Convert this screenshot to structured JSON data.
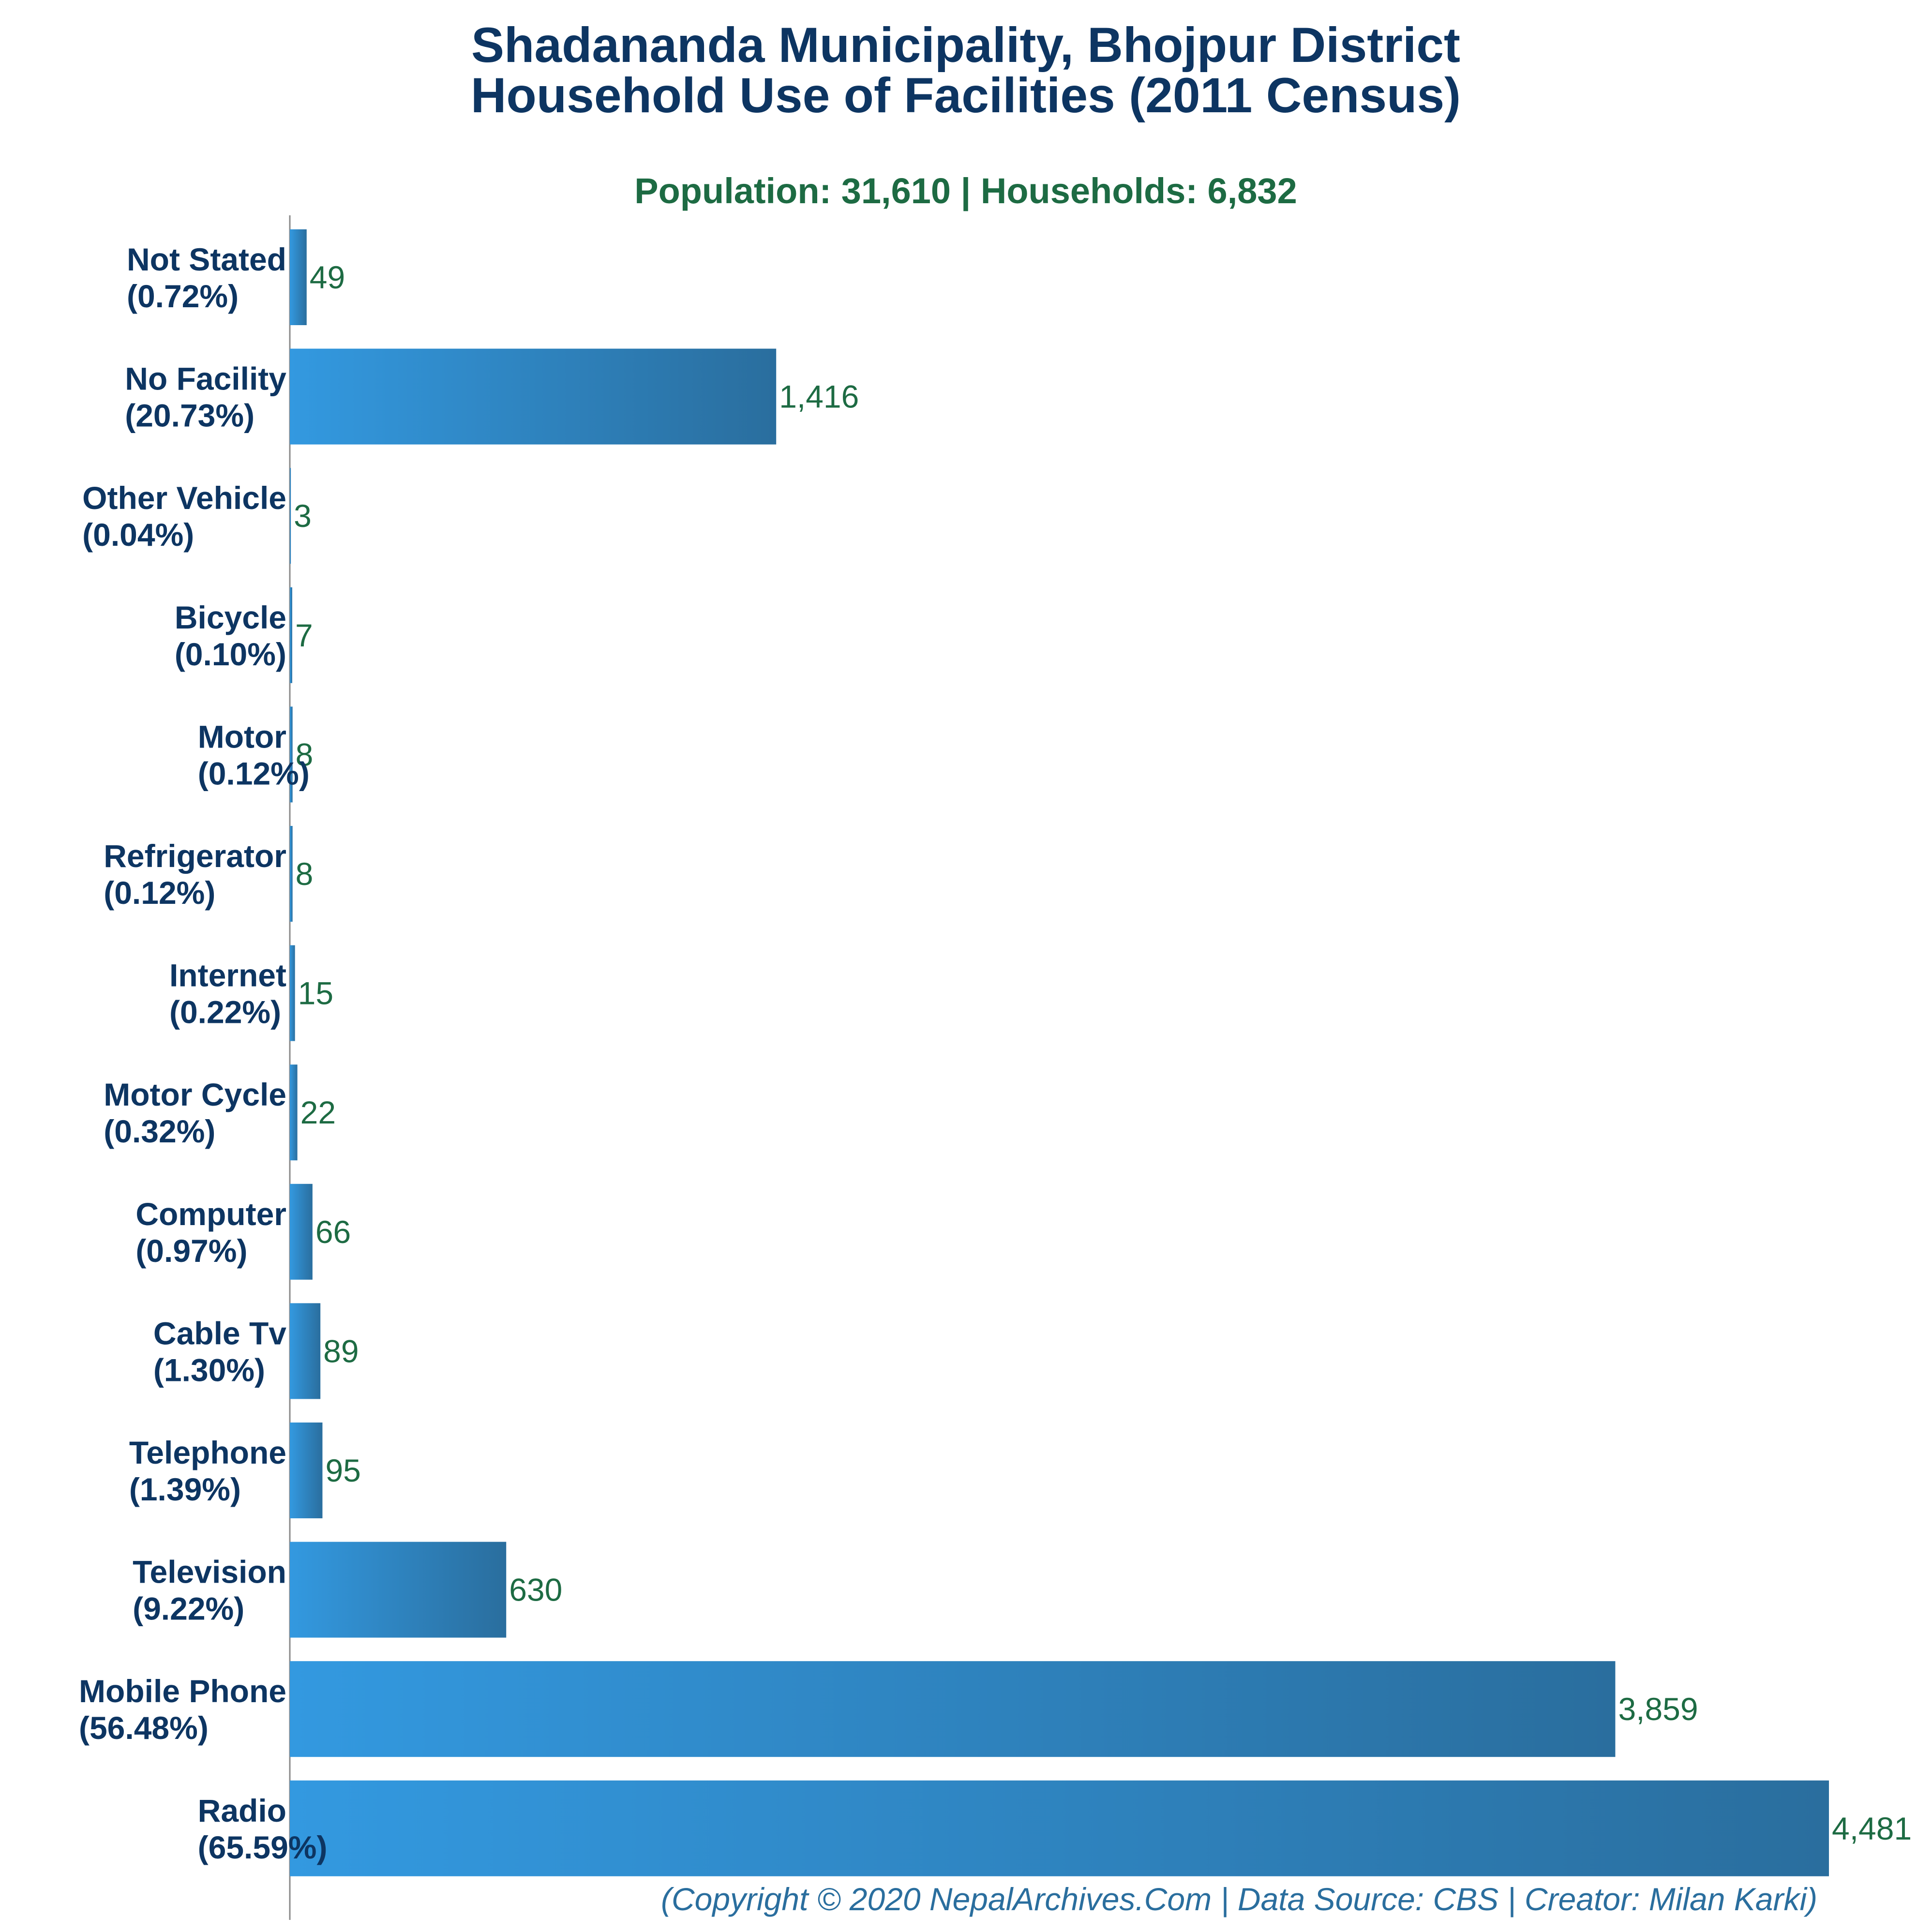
{
  "colors": {
    "title": "#0d3562",
    "subtitle": "#1d6b43",
    "value_label": "#1d6b43",
    "bar_light": "#3399e0",
    "bar_dark": "#2a6e9e",
    "footer": "#2a6e9e",
    "axis": "#8a8a8a"
  },
  "chart_data": {
    "type": "bar",
    "orientation": "horizontal",
    "title": "Shadananda Municipality, Bhojpur District",
    "title_line2": "Household Use of Facilities (2011 Census)",
    "subtitle": "Population: 31,610 | Households: 6,832",
    "footer": "(Copyright © 2020 NepalArchives.Com | Data Source: CBS | Creator: Milan Karki)",
    "xlim": [
      0,
      4481
    ],
    "grid": false,
    "categories": [
      {
        "name": "Not Stated",
        "pct": "(0.72%)",
        "value": 49,
        "label": "49"
      },
      {
        "name": "No Facility",
        "pct": "(20.73%)",
        "value": 1416,
        "label": "1,416"
      },
      {
        "name": "Other Vehicle",
        "pct": "(0.04%)",
        "value": 3,
        "label": "3"
      },
      {
        "name": "Bicycle",
        "pct": "(0.10%)",
        "value": 7,
        "label": "7"
      },
      {
        "name": "Motor",
        "pct": "(0.12%)",
        "value": 8,
        "label": "8"
      },
      {
        "name": "Refrigerator",
        "pct": "(0.12%)",
        "value": 8,
        "label": "8"
      },
      {
        "name": "Internet",
        "pct": "(0.22%)",
        "value": 15,
        "label": "15"
      },
      {
        "name": "Motor Cycle",
        "pct": "(0.32%)",
        "value": 22,
        "label": "22"
      },
      {
        "name": "Computer",
        "pct": "(0.97%)",
        "value": 66,
        "label": "66"
      },
      {
        "name": "Cable Tv",
        "pct": "(1.30%)",
        "value": 89,
        "label": "89"
      },
      {
        "name": "Telephone",
        "pct": "(1.39%)",
        "value": 95,
        "label": "95"
      },
      {
        "name": "Television",
        "pct": "(9.22%)",
        "value": 630,
        "label": "630"
      },
      {
        "name": "Mobile Phone",
        "pct": "(56.48%)",
        "value": 3859,
        "label": "3,859"
      },
      {
        "name": "Radio",
        "pct": "(65.59%)",
        "value": 4481,
        "label": "4,481"
      }
    ]
  }
}
